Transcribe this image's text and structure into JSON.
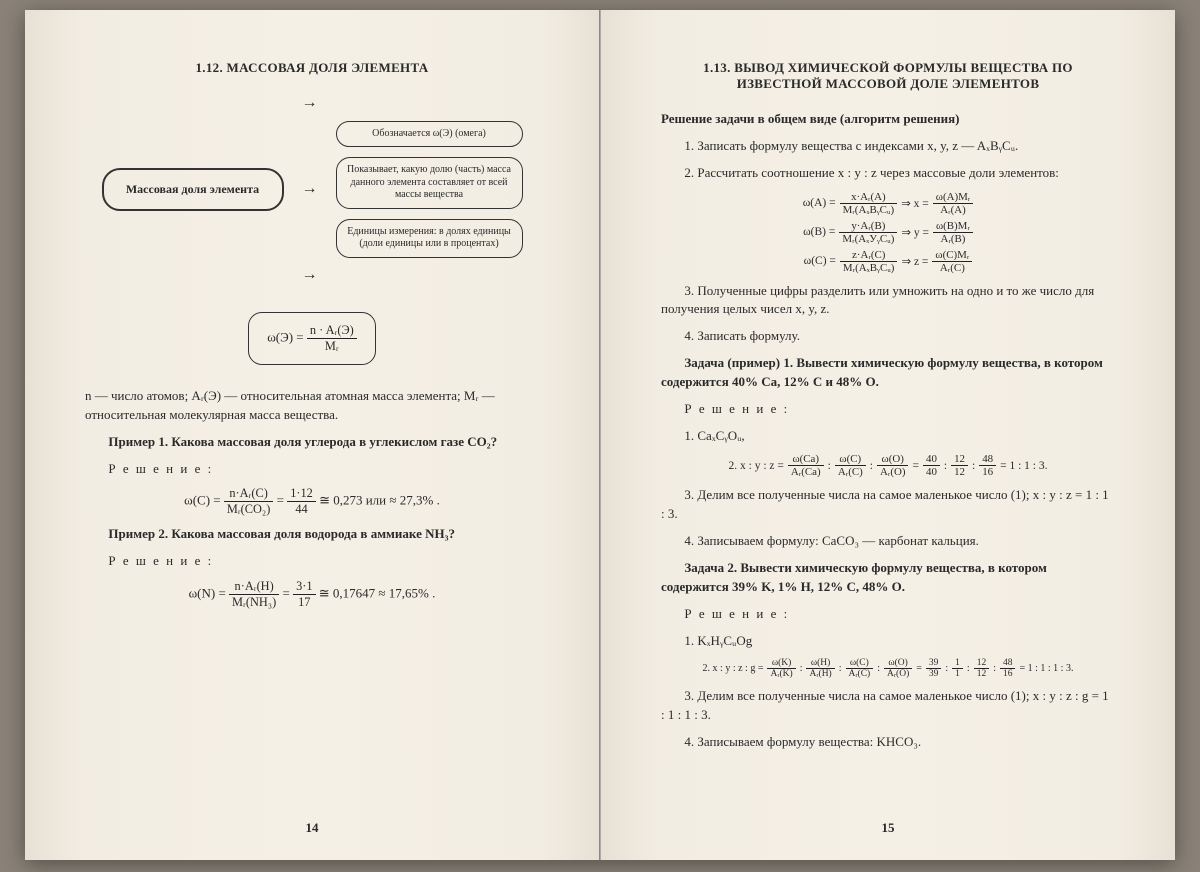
{
  "left": {
    "title": "1.12. МАССОВАЯ ДОЛЯ ЭЛЕМЕНТА",
    "diagram_main": "Массовая доля элемента",
    "diagram_box1": "Обозначается ω(Э) (омега)",
    "diagram_box2": "Показывает, какую долю (часть) масса данного элемента составляет от всей массы вещества",
    "diagram_box3": "Единицы измерения: в долях единицы (доли единицы или в процентах)",
    "formula_lhs": "ω(Э) =",
    "formula_num": "n · Aᵣ(Э)",
    "formula_den": "Mᵣ",
    "def": "n — число атомов; Aᵣ(Э) — относительная атомная масса элемента; Mᵣ — относительная молекулярная масса вещества.",
    "ex1_q": "Пример 1. Какова массовая доля углерода в углекислом газе CO₂?",
    "resh": "Р е ш е н и е :",
    "ex1_lhs": "ω(C) =",
    "ex1_num1": "n·Aᵣ(C)",
    "ex1_den1": "Mᵣ(CO₂)",
    "ex1_num2": "1·12",
    "ex1_den2": "44",
    "ex1_tail": "≅ 0,273   или   ≈ 27,3% .",
    "ex2_q": "Пример 2. Какова массовая доля водорода в аммиаке NH₃?",
    "ex2_lhs": "ω(N) =",
    "ex2_num1": "n·Aᵣ(H)",
    "ex2_den1": "Mᵣ(NH₃)",
    "ex2_num2": "3·1",
    "ex2_den2": "17",
    "ex2_tail": "≅ 0,17647 ≈ 17,65% .",
    "pagenum": "14"
  },
  "right": {
    "title": "1.13. ВЫВОД ХИМИЧЕСКОЙ ФОРМУЛЫ ВЕЩЕСТВА ПО ИЗВЕСТНОЙ МАССОВОЙ ДОЛЕ ЭЛЕМЕНТОВ",
    "h_sub": "Решение задачи в общем виде (алгоритм решения)",
    "step1": "1. Записать формулу вещества с индексами x, y, z — AₓBᵧCᵤ.",
    "step2": "2. Рассчитать соотношение x : y : z через массовые доли элементов:",
    "eqA_l": "ω(A) =",
    "eqA_num": "x·Aᵣ(A)",
    "eqA_den": "Mᵣ(AₓBᵧCᵤ)",
    "eqA_r": "⇒ x =",
    "eqA_num2": "ω(A)Mᵣ",
    "eqA_den2": "Aᵣ(A)",
    "eqB_l": "ω(B) =",
    "eqB_num": "y·Aᵣ(B)",
    "eqB_den": "Mᵣ(AₓУᵧCᵤ)",
    "eqB_r": "⇒ y =",
    "eqB_num2": "ω(B)Mᵣ",
    "eqB_den2": "Aᵣ(B)",
    "eqC_l": "ω(C) =",
    "eqC_num": "z·Aᵣ(C)",
    "eqC_den": "Mᵣ(AₓBᵧCᵤ)",
    "eqC_r": "⇒ z =",
    "eqC_num2": "ω(C)Mᵣ",
    "eqC_den2": "Aᵣ(C)",
    "step3": "3. Полученные цифры разделить или умножить на одно и то же число для получения целых чисел x, y, z.",
    "step4": "4. Записать формулу.",
    "task1": "Задача (пример) 1. Вывести химическую формулу вещества, в котором содержится 40% Ca, 12% C и 48% O.",
    "t1_1": "1. CaₓCᵧOᵤ,",
    "t1_2pre": "2.  x : y : z =",
    "t1_2tail": "= 1 : 1 : 3.",
    "t1_f1n": "ω(Ca)",
    "t1_f1d": "Aᵣ(Ca)",
    "t1_f2n": "ω(C)",
    "t1_f2d": "Aᵣ(C)",
    "t1_f3n": "ω(O)",
    "t1_f3d": "Aᵣ(O)",
    "t1_n1": "40",
    "t1_d1": "40",
    "t1_n2": "12",
    "t1_d2": "12",
    "t1_n3": "48",
    "t1_d3": "16",
    "t1_3": "3. Делим все полученные числа на самое маленькое число (1); x : y : z = 1 : 1 : 3.",
    "t1_4": "4. Записываем формулу: CaCO₃ — карбонат кальция.",
    "task2": "Задача 2. Вывести химическую формулу вещества, в котором содержится 39% K, 1% H, 12% C, 48% O.",
    "t2_1": "1. KₓHᵧCᵤOg",
    "t2_2pre": "2.  x : y : z : g =",
    "t2_2tail": "= 1 : 1 : 1 : 3.",
    "t2_k1n": "ω(K)",
    "t2_k1d": "Aᵣ(K)",
    "t2_k2n": "ω(H)",
    "t2_k2d": "Aᵣ(H)",
    "t2_k3n": "ω(C)",
    "t2_k3d": "Aᵣ(C)",
    "t2_k4n": "ω(O)",
    "t2_k4d": "Aᵣ(O)",
    "t2_n1": "39",
    "t2_d1": "39",
    "t2_n2": "1",
    "t2_d2": "1",
    "t2_n3": "12",
    "t2_d3": "12",
    "t2_n4": "48",
    "t2_d4": "16",
    "t2_3": "3. Делим все полученные числа на самое маленькое число (1); x : y : z : g = 1 : 1 : 1 : 3.",
    "t2_4": "4. Записываем формулу вещества: KHCO₃.",
    "pagenum": "15"
  }
}
